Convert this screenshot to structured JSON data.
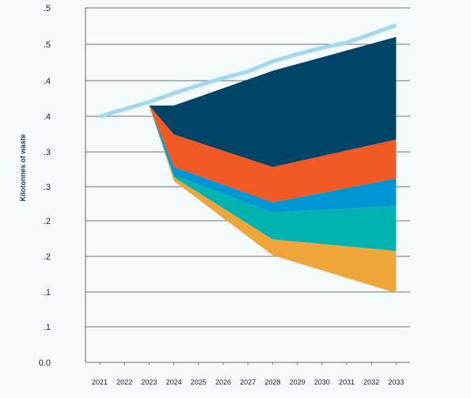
{
  "chart_data": {
    "type": "area",
    "title": "",
    "xlabel": "",
    "ylabel": "Kilotonnes of waste",
    "x": [
      "2021",
      "2022",
      "2023",
      "2024",
      "2025",
      "2026",
      "2027",
      "2028",
      "2029",
      "2030",
      "2031",
      "2032",
      "2033"
    ],
    "y_tick_labels": [
      "0.0",
      ".1",
      ".1",
      ".2",
      ".2",
      ".3",
      ".3",
      ".4",
      ".4",
      ".5",
      ".5"
    ],
    "grid": true,
    "legend": "none",
    "colors": {
      "baseline": "#a3d9ec",
      "navy": "#004468",
      "orange_red": "#f15a24",
      "blue": "#0096d6",
      "teal": "#00b2b0",
      "amber": "#eea63a"
    },
    "baseline": {
      "x": [
        2021,
        2023,
        2024,
        2025,
        2026,
        2027,
        2028,
        2029,
        2030,
        2031,
        2032,
        2033
      ],
      "y": [
        0.34,
        0.36,
        0.372,
        0.383,
        0.393,
        0.402,
        0.416,
        0.426,
        0.435,
        0.442,
        0.454,
        0.466
      ]
    },
    "boundaries": {
      "x": [
        2023,
        2024,
        2028,
        2033
      ],
      "navy_top": [
        0.355,
        0.355,
        0.403,
        0.45
      ],
      "orange_top": [
        0.355,
        0.315,
        0.27,
        0.308
      ],
      "blue_top": [
        0.355,
        0.27,
        0.221,
        0.254
      ],
      "teal_top": [
        0.355,
        0.259,
        0.207,
        0.216
      ],
      "amber_top": [
        0.355,
        0.256,
        0.17,
        0.154
      ],
      "amber_bottom": [
        0.355,
        0.251,
        0.148,
        0.096
      ]
    }
  }
}
